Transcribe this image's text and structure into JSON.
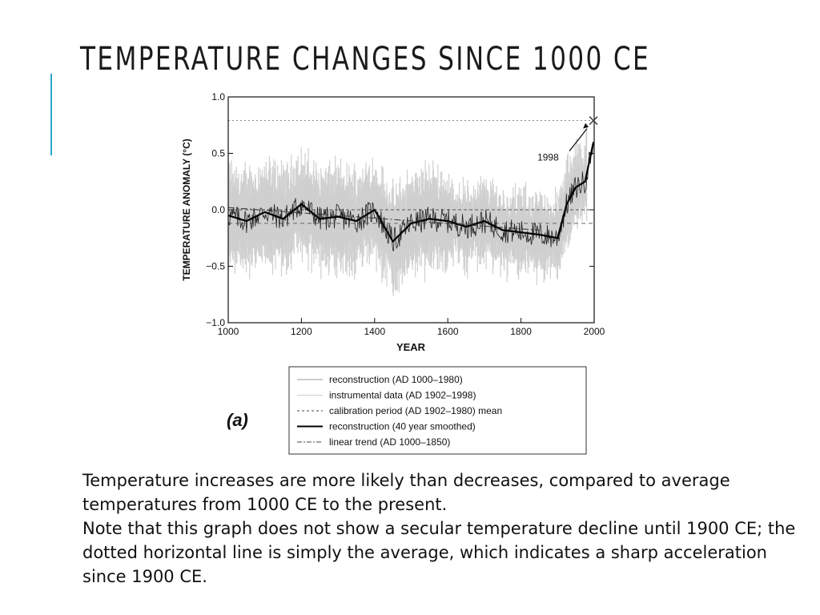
{
  "slide": {
    "title": "TEMPERATURE CHANGES SINCE 1000 CE",
    "accent_color": "#2aa7c8",
    "caption_lines": [
      "Temperature increases are more likely than decreases, compared to average temperatures from 1000 CE to the present.",
      "Note that this graph does not show a secular temperature decline until 1900 CE; the dotted horizontal line is simply the average, which indicates a sharp acceleration since 1900 CE."
    ]
  },
  "chart_data": {
    "type": "line",
    "panel_label": "(a)",
    "title": "",
    "xlabel": "YEAR",
    "ylabel": "TEMPERATURE ANOMALY (°C)",
    "xlim": [
      1000,
      2000
    ],
    "ylim": [
      -1.0,
      1.0
    ],
    "x_ticks": [
      "1000",
      "1200",
      "1400",
      "1600",
      "1800",
      "2000"
    ],
    "y_ticks": [
      "1.0",
      "0.5",
      "0.0",
      "−0.5",
      "−1.0"
    ],
    "grid": false,
    "legend_position": "below",
    "annotation": {
      "label": "1998",
      "year": 1998,
      "value": 0.79
    },
    "reference_lines": {
      "calibration_mean": -0.12,
      "upper_dotted": 0.79
    },
    "series": [
      {
        "name": "reconstruction (AD 1000–1980)",
        "style": "thin-gray"
      },
      {
        "name": "instrumental data (AD 1902–1998)",
        "style": "thin-light"
      },
      {
        "name": "calibration period (AD 1902–1980) mean",
        "style": "dashed"
      },
      {
        "name": "reconstruction (40 year smoothed)",
        "style": "thick-black",
        "x": [
          1000,
          1050,
          1100,
          1150,
          1200,
          1250,
          1300,
          1350,
          1400,
          1450,
          1500,
          1550,
          1600,
          1650,
          1700,
          1750,
          1800,
          1850,
          1900,
          1925,
          1950,
          1975,
          1998
        ],
        "y": [
          -0.05,
          -0.1,
          -0.02,
          -0.08,
          0.05,
          -0.08,
          -0.06,
          -0.1,
          0.0,
          -0.28,
          -0.12,
          -0.08,
          -0.1,
          -0.15,
          -0.1,
          -0.18,
          -0.2,
          -0.22,
          -0.25,
          0.05,
          0.2,
          0.25,
          0.6
        ]
      },
      {
        "name": "linear trend (AD 1000–1850)",
        "style": "dash-dot",
        "x": [
          1000,
          1850
        ],
        "y": [
          0.02,
          -0.18
        ]
      }
    ]
  }
}
